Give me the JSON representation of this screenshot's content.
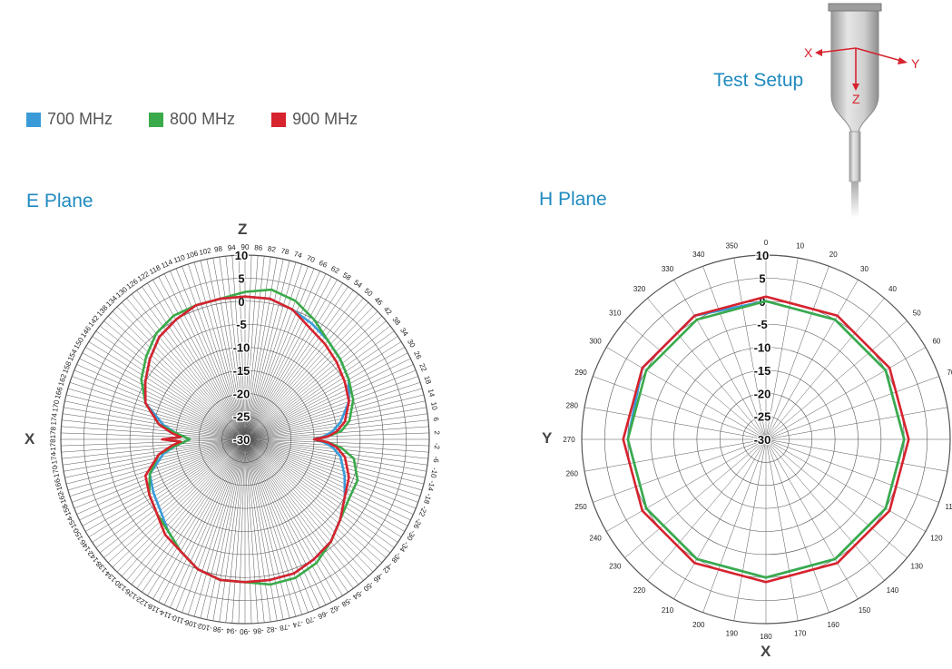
{
  "legend": [
    {
      "label": "700 MHz",
      "color": "#3a9bd8"
    },
    {
      "label": "800 MHz",
      "color": "#3aaa4a"
    },
    {
      "label": "900 MHz",
      "color": "#d6232e"
    }
  ],
  "test_setup": {
    "title": "Test Setup",
    "axis_x": "X",
    "axis_y": "Y",
    "axis_z": "Z"
  },
  "chart_data": [
    {
      "type": "polar",
      "title": "E Plane",
      "axis_top": "Z",
      "axis_left": "X",
      "rlim": [
        -30,
        10
      ],
      "rings": [
        "10",
        "5",
        "0",
        "-5",
        "-10",
        "-15",
        "-20",
        "-25",
        "-30"
      ],
      "angle_labels": [
        "-178",
        "-174",
        "-170",
        "-166",
        "-162",
        "-158",
        "-154",
        "-150",
        "-146",
        "-142",
        "-138",
        "-134",
        "-130",
        "-126",
        "-122",
        "-118",
        "-114",
        "-110",
        "-106",
        "-102",
        "-98",
        "-94",
        "-90",
        "-86",
        "-82",
        "-78",
        "-74",
        "-70",
        "-66",
        "-62",
        "-58",
        "-54",
        "-50",
        "-46",
        "-42",
        "-38",
        "-34",
        "-30",
        "-26",
        "-22",
        "-18",
        "-14",
        "-10",
        "-6",
        "-2",
        "2",
        "6",
        "10",
        "14",
        "18",
        "22",
        "26",
        "30",
        "34",
        "38",
        "42",
        "46",
        "50",
        "54",
        "58",
        "62",
        "66",
        "70",
        "74",
        "78",
        "82",
        "86",
        "90",
        "94",
        "98",
        "102",
        "106",
        "110",
        "114",
        "118",
        "122",
        "126",
        "130",
        "134",
        "138",
        "142",
        "146",
        "150",
        "154",
        "158",
        "162",
        "166",
        "170",
        "174",
        "178"
      ],
      "theta": [
        0,
        10,
        20,
        30,
        40,
        50,
        60,
        70,
        80,
        85,
        88,
        90,
        92,
        95,
        100,
        110,
        120,
        130,
        140,
        150,
        160,
        170,
        180,
        190,
        200,
        210,
        220,
        230,
        240,
        250,
        260,
        265,
        268,
        270,
        272,
        275,
        280,
        290,
        300,
        310,
        320,
        330,
        340,
        350
      ],
      "series": [
        {
          "name": "700 MHz",
          "values": [
            1,
            1,
            0,
            -1,
            -2,
            -3,
            -4,
            -6,
            -9,
            -11,
            -13,
            -15,
            -13,
            -11,
            -9,
            -7,
            -5,
            -3,
            -1,
            0,
            1,
            1,
            1,
            1,
            0,
            -2,
            -4,
            -6,
            -7,
            -8,
            -12,
            -15,
            -17,
            -18,
            -17,
            -15,
            -12,
            -7,
            -5,
            -3,
            -1,
            0,
            1,
            1
          ]
        },
        {
          "name": "800 MHz",
          "values": [
            2,
            3,
            2,
            0,
            -2,
            -3,
            -4,
            -5,
            -7,
            -9,
            -12,
            -15,
            -12,
            -9,
            -6,
            -4,
            -4,
            -3,
            -1,
            1,
            2,
            2,
            1,
            1,
            0,
            -2,
            -4,
            -5,
            -6,
            -8,
            -11,
            -15,
            -17,
            -18,
            -17,
            -15,
            -11,
            -7,
            -4,
            -2,
            0,
            1,
            1,
            1
          ]
        },
        {
          "name": "900 MHz",
          "values": [
            1,
            1,
            0,
            -2,
            -3,
            -4,
            -5,
            -6,
            -8,
            -10,
            -12,
            -15,
            -12,
            -10,
            -8,
            -6,
            -5,
            -3,
            -1,
            0,
            1,
            1,
            1,
            1,
            0,
            -2,
            -3,
            -5,
            -6,
            -7,
            -11,
            -14,
            -16,
            -12,
            -16,
            -14,
            -11,
            -7,
            -5,
            -3,
            -1,
            0,
            1,
            1
          ]
        }
      ]
    },
    {
      "type": "polar",
      "title": "H Plane",
      "axis_left": "Y",
      "axis_bottom": "X",
      "rlim": [
        -30,
        10
      ],
      "rings": [
        "10",
        "5",
        "0",
        "-5",
        "-10",
        "-15",
        "-20",
        "-25",
        "-30"
      ],
      "angle_labels": [
        "0",
        "10",
        "20",
        "30",
        "40",
        "50",
        "60",
        "70",
        "80",
        "90",
        "100",
        "110",
        "120",
        "130",
        "140",
        "150",
        "160",
        "170",
        "180",
        "190",
        "200",
        "210",
        "220",
        "230",
        "240",
        "250",
        "260",
        "270",
        "280",
        "290",
        "300",
        "310",
        "320",
        "330",
        "340",
        "350"
      ],
      "theta": [
        0,
        30,
        60,
        90,
        120,
        150,
        180,
        210,
        240,
        270,
        300,
        330
      ],
      "series": [
        {
          "name": "700 MHz",
          "values": [
            0,
            0,
            0,
            0,
            0,
            0,
            0,
            0,
            0,
            0,
            1,
            1
          ]
        },
        {
          "name": "800 MHz",
          "values": [
            0,
            0,
            0,
            0,
            0,
            0,
            0,
            0,
            0,
            0,
            0,
            0
          ]
        },
        {
          "name": "900 MHz",
          "values": [
            1,
            1,
            1,
            1,
            1,
            1,
            1,
            1,
            1,
            1,
            1,
            1
          ]
        }
      ]
    }
  ]
}
